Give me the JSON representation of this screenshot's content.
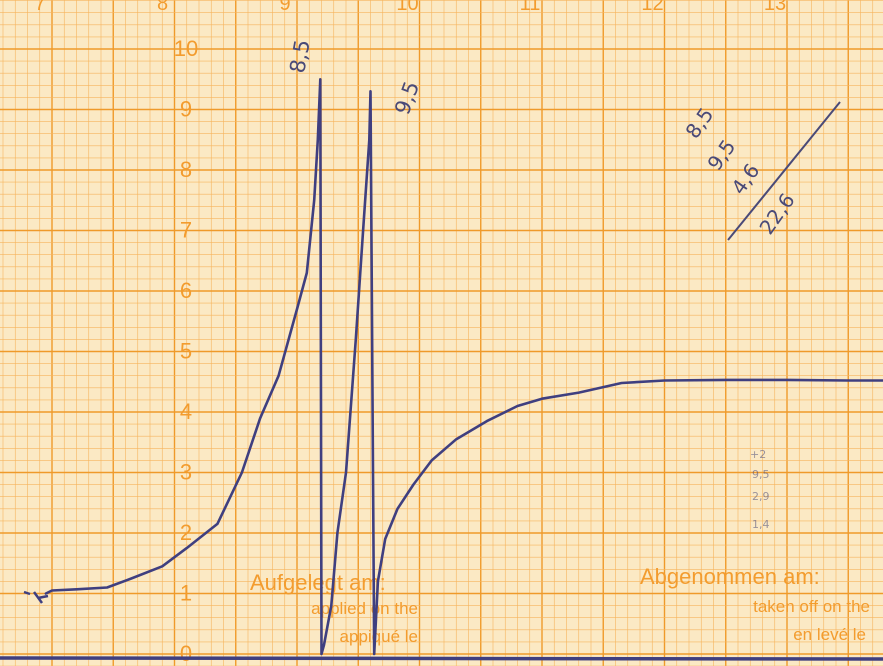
{
  "chart_data": {
    "type": "line",
    "title": "",
    "xlabel": "",
    "ylabel": "",
    "x_ticks": [
      "7",
      "8",
      "9",
      "10",
      "11",
      "12",
      "13"
    ],
    "y_ticks": [
      "0",
      "1",
      "2",
      "3",
      "4",
      "5",
      "6",
      "7",
      "8",
      "9",
      "10"
    ],
    "xlim": [
      6.85,
      14.1
    ],
    "ylim": [
      -0.05,
      10.3
    ],
    "grid": true,
    "series": [
      {
        "name": "",
        "x": [
          6.95,
          7.0,
          7.2,
          7.45,
          7.65,
          7.9,
          8.1,
          8.35,
          8.55,
          8.7,
          8.85,
          9.0,
          9.08,
          9.14,
          9.17,
          9.19,
          9.2,
          9.22,
          9.28,
          9.33,
          9.4,
          9.48,
          9.54,
          9.59,
          9.6,
          9.63,
          9.66,
          9.72,
          9.82,
          9.95,
          10.1,
          10.3,
          10.55,
          10.8,
          11.0,
          11.3,
          11.65,
          12.0,
          12.5,
          13.0,
          13.5,
          14.1
        ],
        "y": [
          1.0,
          1.05,
          1.07,
          1.1,
          1.25,
          1.45,
          1.75,
          2.15,
          3.0,
          3.9,
          4.6,
          5.7,
          6.3,
          7.5,
          8.5,
          9.5,
          0.0,
          0.15,
          0.8,
          2.0,
          3.0,
          5.2,
          7.0,
          8.5,
          9.3,
          0.0,
          1.2,
          1.9,
          2.4,
          2.8,
          3.2,
          3.55,
          3.85,
          4.1,
          4.22,
          4.32,
          4.48,
          4.52,
          4.53,
          4.53,
          4.52,
          4.52
        ]
      }
    ],
    "annotations": [
      "8,5",
      "9,5",
      "8,5",
      "9,5",
      "4,6",
      "22,6",
      "+2",
      "9,5",
      "2,9",
      "1,4"
    ]
  },
  "form": {
    "applied_label_de": "Aufgelegt am:",
    "applied_label_en": "applied on the",
    "applied_label_fr": "appiqué le",
    "removed_label_de": "Abgenommen am:",
    "removed_label_en": "taken off on the",
    "removed_label_fr": "en levé le"
  },
  "colors": {
    "paper": "#fbe9c4",
    "grid_minor": "#f6b45e",
    "grid_major": "#ef9a2a",
    "print": "#f39c2e",
    "ink": "#3f3f80",
    "pencil": "#4a4a78"
  }
}
